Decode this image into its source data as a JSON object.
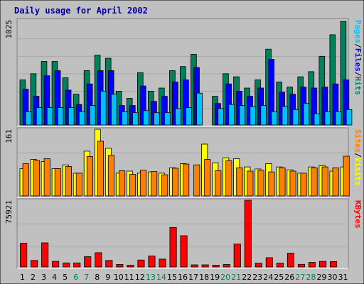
{
  "colors": {
    "background": "#C0C0C0",
    "panel_border": "#808080",
    "title": "#0000A0",
    "hits": "#00805C",
    "files": "#0000FF",
    "pages": "#00C0FF",
    "visits": "#FFFF00",
    "sites": "#FF8000",
    "kbytes": "#FF0000",
    "weekday_label": "#000000",
    "weekend_label": "#00805C"
  },
  "chart_data": {
    "type": "bar",
    "title": "Daily usage for April 2002",
    "categories": [
      "1",
      "2",
      "3",
      "4",
      "5",
      "6",
      "7",
      "8",
      "9",
      "10",
      "11",
      "12",
      "13",
      "14",
      "15",
      "16",
      "17",
      "18",
      "19",
      "20",
      "21",
      "22",
      "23",
      "24",
      "25",
      "26",
      "27",
      "28",
      "29",
      "30",
      "31"
    ],
    "weekend_days": [
      "6",
      "7",
      "13",
      "14",
      "20",
      "21",
      "27",
      "28"
    ],
    "panels": [
      {
        "key": "hits_files_pages",
        "max_label": "1025",
        "ylim": [
          0,
          1025
        ],
        "right_label_parts": [
          {
            "text": "Pages",
            "color_key": "pages"
          },
          {
            "text": "/",
            "color_key": "weekday_label"
          },
          {
            "text": "Files",
            "color_key": "files"
          },
          {
            "text": "/",
            "color_key": "weekday_label"
          },
          {
            "text": "Hits",
            "color_key": "hits"
          }
        ],
        "series": [
          {
            "name": "Hits",
            "color_key": "hits",
            "values": [
              440,
              500,
              620,
              620,
              460,
              300,
              530,
              680,
              650,
              330,
              260,
              510,
              330,
              360,
              530,
              570,
              690,
              0,
              280,
              500,
              470,
              360,
              440,
              740,
              420,
              370,
              470,
              520,
              670,
              880,
              1010
            ]
          },
          {
            "name": "Files",
            "color_key": "files",
            "values": [
              350,
              280,
              480,
              530,
              340,
              200,
              400,
              530,
              530,
              190,
              190,
              380,
              230,
              280,
              420,
              440,
              560,
              0,
              210,
              400,
              330,
              280,
              360,
              640,
              320,
              300,
              370,
              360,
              370,
              400,
              440
            ]
          },
          {
            "name": "Pages",
            "color_key": "pages",
            "values": [
              130,
              170,
              170,
              170,
              170,
              130,
              190,
              330,
              300,
              130,
              120,
              140,
              120,
              120,
              160,
              170,
              310,
              0,
              160,
              200,
              190,
              180,
              190,
              130,
              180,
              150,
              210,
              110,
              130,
              130,
              150
            ]
          }
        ]
      },
      {
        "key": "visits_sites",
        "max_label": "161",
        "ylim": [
          0,
          161
        ],
        "right_label_parts": [
          {
            "text": "Sites",
            "color_key": "sites"
          },
          {
            "text": "/",
            "color_key": "weekday_label"
          },
          {
            "text": "Visits",
            "color_key": "visits"
          }
        ],
        "series": [
          {
            "name": "Visits",
            "color_key": "visits",
            "values": [
              66,
              88,
              83,
              66,
              75,
              55,
              108,
              161,
              115,
              55,
              60,
              55,
              58,
              55,
              68,
              78,
              0,
              125,
              80,
              92,
              90,
              70,
              65,
              78,
              70,
              63,
              55,
              70,
              73,
              60,
              70
            ]
          },
          {
            "name": "Sites",
            "color_key": "sites",
            "values": [
              78,
              86,
              90,
              66,
              71,
              55,
              95,
              132,
              98,
              61,
              52,
              62,
              59,
              51,
              67,
              77,
              75,
              88,
              61,
              85,
              68,
              60,
              62,
              58,
              68,
              60,
              55,
              68,
              70,
              68,
              96
            ]
          }
        ]
      },
      {
        "key": "kbytes",
        "max_label": "75921",
        "ylim": [
          0,
          75921
        ],
        "right_label_parts": [
          {
            "text": "KBytes",
            "color_key": "kbytes"
          }
        ],
        "series": [
          {
            "name": "KBytes",
            "color_key": "kbytes",
            "values": [
              27000,
              7400,
              27500,
              6400,
              4600,
              4600,
              11700,
              16200,
              7400,
              2800,
              2000,
              7900,
              12400,
              9000,
              45000,
              35500,
              2400,
              2400,
              2000,
              2800,
              26000,
              75921,
              4400,
              10600,
              4400,
              15700,
              3000,
              5200,
              6400,
              6100,
              0
            ]
          }
        ]
      }
    ]
  }
}
